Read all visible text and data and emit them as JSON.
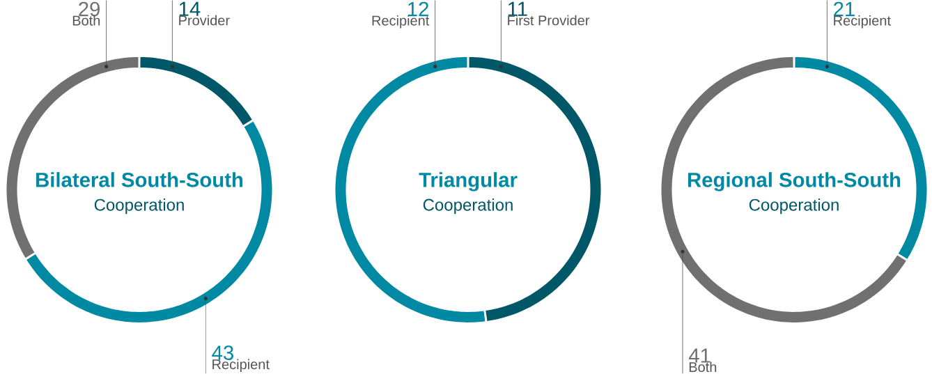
{
  "chart_data": [
    {
      "type": "donut",
      "title": "Bilateral South-South",
      "subtitle": "Cooperation",
      "categories": [
        "Provider",
        "Recipient",
        "Both"
      ],
      "values": [
        14,
        43,
        29
      ],
      "colors": [
        "#005768",
        "#0089a3",
        "#707070"
      ],
      "data_labels": true
    },
    {
      "type": "donut",
      "title": "Triangular",
      "subtitle": "Cooperation",
      "categories": [
        "First Provider",
        "Recipient"
      ],
      "values": [
        11,
        12
      ],
      "colors": [
        "#005768",
        "#0089a3"
      ],
      "data_labels": true
    },
    {
      "type": "donut",
      "title": "Regional South-South",
      "subtitle": "Cooperation",
      "categories": [
        "Recipient",
        "Both"
      ],
      "values": [
        21,
        41
      ],
      "colors": [
        "#0089a3",
        "#707070"
      ],
      "data_labels": true
    }
  ]
}
